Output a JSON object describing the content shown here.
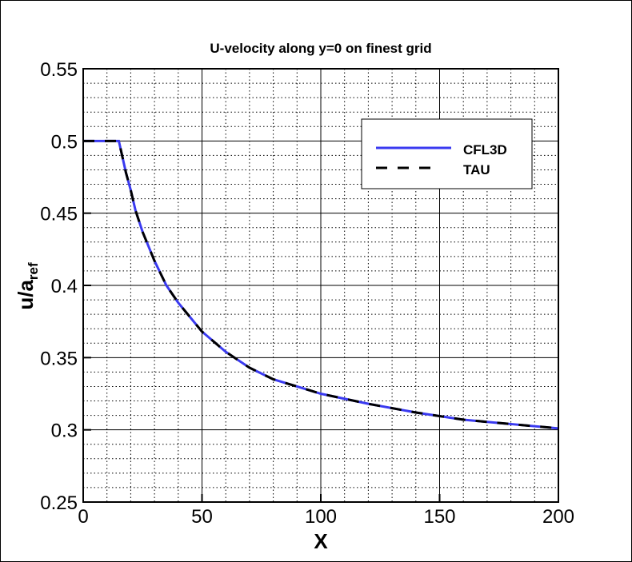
{
  "chart_data": {
    "type": "line",
    "title": "U-velocity along y=0 on finest grid",
    "xlabel": "X",
    "ylabel": "u/a",
    "ylabel_subscript": "ref",
    "xlim": [
      0,
      200
    ],
    "ylim": [
      0.25,
      0.55
    ],
    "xticks": [
      0,
      50,
      100,
      150,
      200
    ],
    "yticks": [
      0.25,
      0.3,
      0.35,
      0.4,
      0.45,
      0.5,
      0.55
    ],
    "xtick_labels": [
      "0",
      "50",
      "100",
      "150",
      "200"
    ],
    "ytick_labels": [
      "0.25",
      "0.3",
      "0.35",
      "0.4",
      "0.45",
      "0.5",
      "0.55"
    ],
    "x_minor_step": 10,
    "y_minor_step": 0.01,
    "grid": true,
    "legend_position": "top-right",
    "series": [
      {
        "name": "CFL3D",
        "color": "#3a3af0",
        "style": "solid",
        "x": [
          0,
          15,
          18,
          20,
          22,
          25,
          30,
          35,
          40,
          50,
          60,
          70,
          80,
          90,
          100,
          120,
          140,
          160,
          180,
          200
        ],
        "y": [
          0.5,
          0.5,
          0.478,
          0.466,
          0.452,
          0.437,
          0.417,
          0.4,
          0.388,
          0.368,
          0.354,
          0.343,
          0.335,
          0.33,
          0.325,
          0.318,
          0.312,
          0.307,
          0.304,
          0.301
        ]
      },
      {
        "name": "TAU",
        "color": "#000000",
        "style": "dashed",
        "x": [
          0,
          15,
          18,
          20,
          22,
          25,
          30,
          35,
          40,
          50,
          60,
          70,
          80,
          90,
          100,
          120,
          140,
          160,
          180,
          200
        ],
        "y": [
          0.5,
          0.5,
          0.478,
          0.466,
          0.452,
          0.437,
          0.417,
          0.4,
          0.388,
          0.368,
          0.354,
          0.343,
          0.335,
          0.33,
          0.325,
          0.318,
          0.312,
          0.307,
          0.304,
          0.301
        ]
      }
    ]
  }
}
